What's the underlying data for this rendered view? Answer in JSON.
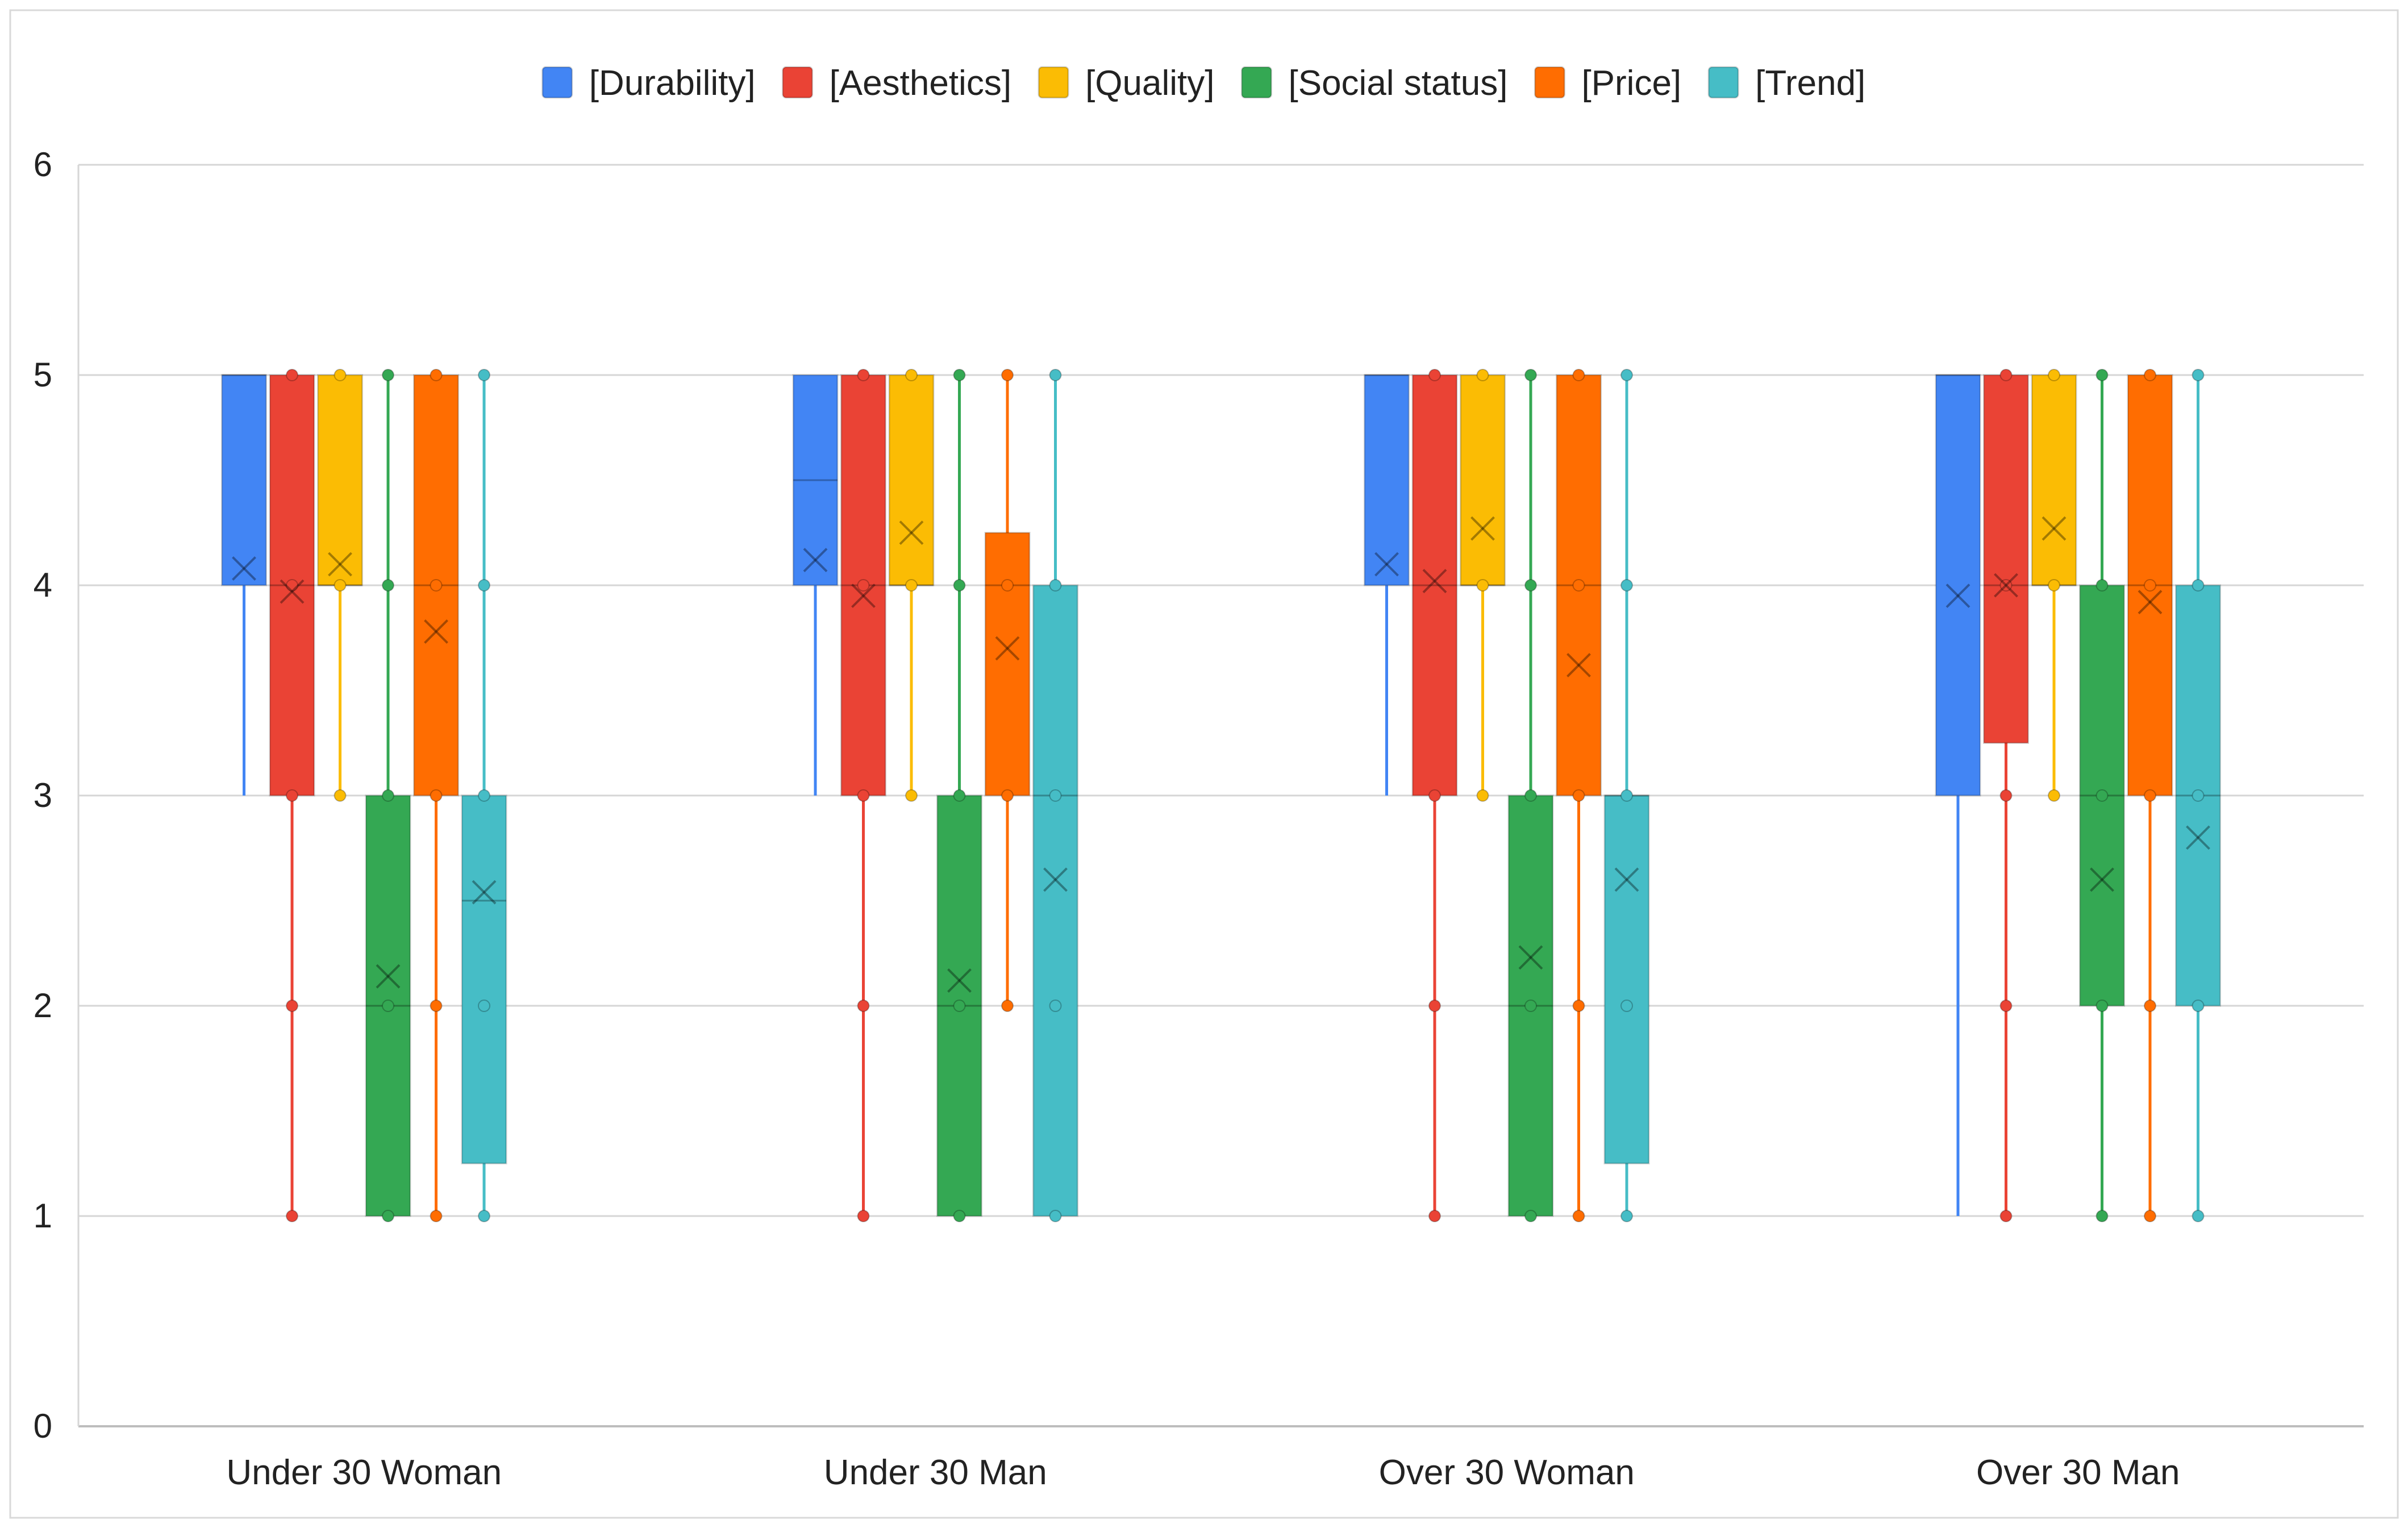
{
  "chart_data": {
    "type": "box",
    "title": "",
    "xlabel": "",
    "ylabel": "",
    "ylim": [
      0,
      6
    ],
    "yticks": [
      "0",
      "1",
      "2",
      "3",
      "4",
      "5",
      "6"
    ],
    "grid": "horizontal",
    "legend_position": "top",
    "categories": [
      "Under 30 Woman",
      "Under 30 Man",
      "Over 30 Woman",
      "Over 30 Man"
    ],
    "series": [
      {
        "name": "[Durability]",
        "color": "#4285f4",
        "boxes": [
          {
            "whisker_low": 3,
            "q1": 4,
            "median": 5,
            "q3": 5,
            "whisker_high": 5,
            "mean": 4.08,
            "points": []
          },
          {
            "whisker_low": 3,
            "q1": 4,
            "median": 4.5,
            "q3": 5,
            "whisker_high": 5,
            "mean": 4.12,
            "points": []
          },
          {
            "whisker_low": 3,
            "q1": 4,
            "median": 5,
            "q3": 5,
            "whisker_high": 5,
            "mean": 4.1,
            "points": []
          },
          {
            "whisker_low": 1,
            "q1": 3,
            "median": 5,
            "q3": 5,
            "whisker_high": 5,
            "mean": 3.95,
            "points": []
          }
        ]
      },
      {
        "name": "[Aesthetics]",
        "color": "#ea4335",
        "boxes": [
          {
            "whisker_low": 1,
            "q1": 3,
            "median": 4,
            "q3": 5,
            "whisker_high": 5,
            "mean": 3.97,
            "points": [
              1,
              2,
              3,
              4,
              5
            ]
          },
          {
            "whisker_low": 1,
            "q1": 3,
            "median": 4,
            "q3": 5,
            "whisker_high": 5,
            "mean": 3.95,
            "points": [
              1,
              2,
              3,
              4,
              5
            ]
          },
          {
            "whisker_low": 1,
            "q1": 3,
            "median": 4,
            "q3": 5,
            "whisker_high": 5,
            "mean": 4.02,
            "points": [
              1,
              2,
              3,
              5
            ]
          },
          {
            "whisker_low": 1,
            "q1": 3.25,
            "median": 4,
            "q3": 5,
            "whisker_high": 5,
            "mean": 4.0,
            "points": [
              1,
              2,
              3,
              4,
              5
            ]
          }
        ]
      },
      {
        "name": "[Quality]",
        "color": "#fbbc04",
        "boxes": [
          {
            "whisker_low": 3,
            "q1": 4,
            "median": 4,
            "q3": 5,
            "whisker_high": 5,
            "mean": 4.1,
            "points": [
              3,
              4,
              5
            ]
          },
          {
            "whisker_low": 3,
            "q1": 4,
            "median": 4,
            "q3": 5,
            "whisker_high": 5,
            "mean": 4.25,
            "points": [
              3,
              4,
              5
            ]
          },
          {
            "whisker_low": 3,
            "q1": 4,
            "median": 4,
            "q3": 5,
            "whisker_high": 5,
            "mean": 4.27,
            "points": [
              3,
              4,
              5
            ]
          },
          {
            "whisker_low": 3,
            "q1": 4,
            "median": 4,
            "q3": 5,
            "whisker_high": 5,
            "mean": 4.27,
            "points": [
              3,
              4,
              5
            ]
          }
        ]
      },
      {
        "name": "[Social status]",
        "color": "#34a853",
        "boxes": [
          {
            "whisker_low": 1,
            "q1": 1,
            "median": 2,
            "q3": 3,
            "whisker_high": 5,
            "mean": 2.14,
            "points": [
              1,
              2,
              3,
              4,
              5
            ]
          },
          {
            "whisker_low": 1,
            "q1": 1,
            "median": 2,
            "q3": 3,
            "whisker_high": 5,
            "mean": 2.12,
            "points": [
              1,
              2,
              3,
              4,
              5
            ]
          },
          {
            "whisker_low": 1,
            "q1": 1,
            "median": 2,
            "q3": 3,
            "whisker_high": 5,
            "mean": 2.23,
            "points": [
              1,
              2,
              3,
              4,
              5
            ]
          },
          {
            "whisker_low": 1,
            "q1": 2,
            "median": 3,
            "q3": 4,
            "whisker_high": 5,
            "mean": 2.6,
            "points": [
              1,
              2,
              3,
              4,
              5
            ]
          }
        ]
      },
      {
        "name": "[Price]",
        "color": "#ff6d01",
        "boxes": [
          {
            "whisker_low": 1,
            "q1": 3,
            "median": 4,
            "q3": 5,
            "whisker_high": 5,
            "mean": 3.78,
            "points": [
              1,
              2,
              3,
              4,
              5
            ]
          },
          {
            "whisker_low": 2,
            "q1": 3,
            "median": 4,
            "q3": 4.25,
            "whisker_high": 5,
            "mean": 3.7,
            "points": [
              2,
              3,
              4,
              5
            ]
          },
          {
            "whisker_low": 1,
            "q1": 3,
            "median": 4,
            "q3": 5,
            "whisker_high": 5,
            "mean": 3.62,
            "points": [
              1,
              2,
              3,
              4,
              5
            ]
          },
          {
            "whisker_low": 1,
            "q1": 3,
            "median": 4,
            "q3": 5,
            "whisker_high": 5,
            "mean": 3.92,
            "points": [
              1,
              2,
              3,
              4,
              5
            ]
          }
        ]
      },
      {
        "name": "[Trend]",
        "color": "#46bdc6",
        "boxes": [
          {
            "whisker_low": 1,
            "q1": 1.25,
            "median": 2.5,
            "q3": 3,
            "whisker_high": 5,
            "mean": 2.54,
            "points": [
              1,
              2,
              3,
              4,
              5
            ]
          },
          {
            "whisker_low": 1,
            "q1": 1,
            "median": 3,
            "q3": 4,
            "whisker_high": 5,
            "mean": 2.6,
            "points": [
              1,
              2,
              3,
              4,
              5
            ]
          },
          {
            "whisker_low": 1,
            "q1": 1.25,
            "median": 3,
            "q3": 3,
            "whisker_high": 5,
            "mean": 2.6,
            "points": [
              1,
              2,
              3,
              4,
              5
            ]
          },
          {
            "whisker_low": 1,
            "q1": 2,
            "median": 3,
            "q3": 4,
            "whisker_high": 5,
            "mean": 2.8,
            "points": [
              1,
              2,
              3,
              4,
              5
            ]
          }
        ]
      }
    ]
  }
}
